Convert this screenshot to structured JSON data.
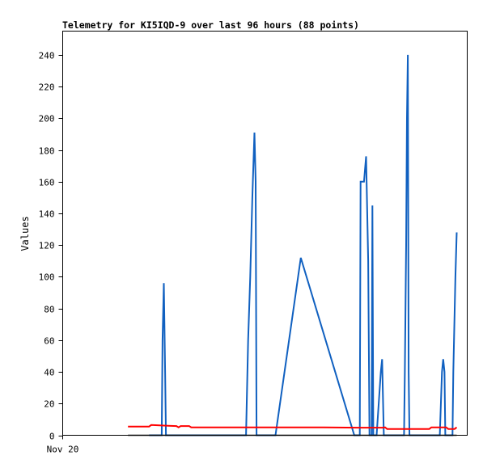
{
  "chart_data": {
    "type": "line",
    "title": "Telemetry for KI5IQD-9 over last 96 hours (88 points)",
    "xlabel": "",
    "ylabel": "Values",
    "xlim": [
      0,
      96
    ],
    "ylim": [
      0,
      255
    ],
    "yticks": [
      0,
      20,
      40,
      60,
      80,
      100,
      120,
      140,
      160,
      180,
      200,
      220,
      240
    ],
    "xtick_labels": [
      {
        "x": 0,
        "label": "Nov 20"
      }
    ],
    "grid": false,
    "legend": "none",
    "series": [
      {
        "color": "#1060c0",
        "points": [
          [
            20.5,
            0
          ],
          [
            23.5,
            0
          ],
          [
            23.7,
            60
          ],
          [
            24.0,
            96
          ],
          [
            24.3,
            40
          ],
          [
            24.5,
            0
          ],
          [
            43.5,
            0
          ],
          [
            44.0,
            60
          ],
          [
            44.5,
            100
          ],
          [
            45.0,
            150
          ],
          [
            45.5,
            191
          ],
          [
            45.8,
            160
          ],
          [
            46.0,
            0
          ],
          [
            50.5,
            0
          ],
          [
            56.5,
            112
          ],
          [
            69.2,
            0
          ],
          [
            70.5,
            0
          ],
          [
            70.7,
            160
          ],
          [
            71.5,
            160
          ],
          [
            72.0,
            176
          ],
          [
            72.5,
            110
          ],
          [
            72.8,
            0
          ],
          [
            73.3,
            0
          ],
          [
            73.5,
            145
          ],
          [
            73.7,
            0
          ],
          [
            74.5,
            0
          ],
          [
            75.5,
            40
          ],
          [
            75.8,
            48
          ],
          [
            76.2,
            0
          ],
          [
            81.0,
            0
          ],
          [
            81.2,
            40
          ],
          [
            81.5,
            120
          ],
          [
            81.7,
            200
          ],
          [
            81.9,
            240
          ],
          [
            82.1,
            40
          ],
          [
            82.3,
            0
          ],
          [
            89.5,
            0
          ],
          [
            90.0,
            40
          ],
          [
            90.3,
            48
          ],
          [
            90.6,
            40
          ],
          [
            90.8,
            0
          ],
          [
            92.5,
            0
          ],
          [
            92.7,
            40
          ],
          [
            93.2,
            100
          ],
          [
            93.5,
            128
          ]
        ]
      },
      {
        "color": "#ff0000",
        "points": [
          [
            15.5,
            5.5
          ],
          [
            20.5,
            5.5
          ],
          [
            21,
            6.5
          ],
          [
            25,
            6
          ],
          [
            27,
            5.8
          ],
          [
            27.5,
            5
          ],
          [
            28,
            5.8
          ],
          [
            30,
            5.8
          ],
          [
            30.5,
            5
          ],
          [
            62,
            5
          ],
          [
            70,
            4.8
          ],
          [
            76,
            4.8
          ],
          [
            76.5,
            5
          ],
          [
            77,
            4
          ],
          [
            87,
            4
          ],
          [
            87.5,
            5
          ],
          [
            91,
            5
          ],
          [
            91.5,
            4
          ],
          [
            93,
            4
          ],
          [
            93.5,
            5
          ]
        ]
      },
      {
        "color": "#000000",
        "points": [
          [
            15.5,
            0
          ],
          [
            93.5,
            0
          ]
        ]
      }
    ]
  }
}
